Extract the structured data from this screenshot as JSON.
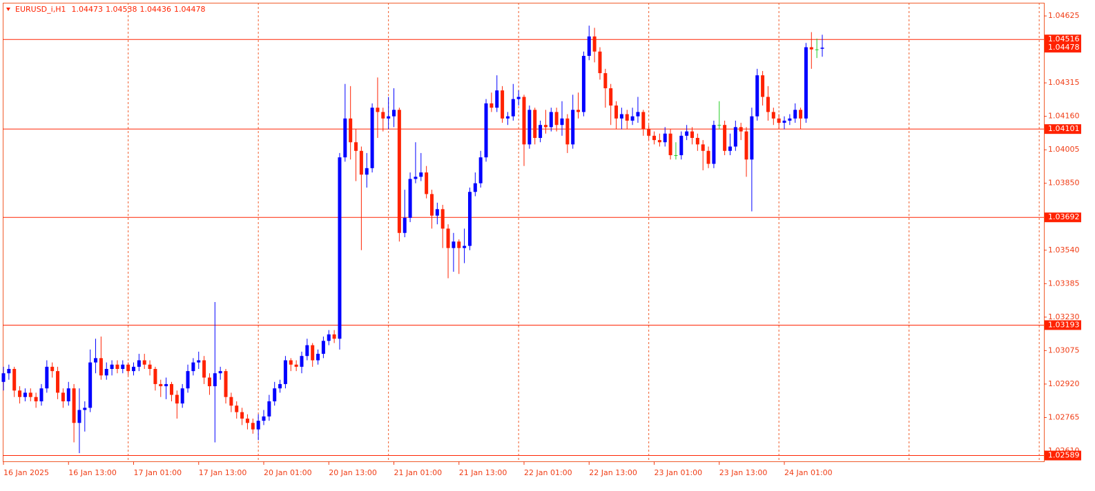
{
  "chart_data": {
    "type": "candlestick",
    "title": "EURUSD_i,H1",
    "up_color": "#0000ff",
    "down_color": "#ff2200",
    "doji_color": "#22cc22",
    "line_color": "#ff2200",
    "text_color": "#f03c14",
    "period_separators": true,
    "ylim": [
      1.02562,
      1.04686
    ],
    "yticks": [
      1.04625,
      1.04315,
      {
        "value": 1.0416,
        "label": "1.04160"
      },
      1.04005,
      {
        "value": 1.0385,
        "label": "1.03850"
      },
      {
        "value": 1.0354,
        "label": "1.03540"
      },
      1.03385,
      {
        "value": 1.0323,
        "label": "1.03230"
      },
      1.03075,
      {
        "value": 1.0292,
        "label": "1.02920"
      },
      1.02765,
      {
        "value": 1.0261,
        "label": "1.02610"
      }
    ],
    "hlines": [
      1.04516,
      1.04101,
      1.03692,
      1.03193,
      1.02589
    ],
    "categories": [
      "16 Jan 2025",
      null,
      null,
      null,
      null,
      null,
      null,
      null,
      null,
      null,
      null,
      null,
      "16 Jan 13:00",
      null,
      null,
      null,
      null,
      null,
      null,
      null,
      null,
      null,
      null,
      null,
      "17 Jan 01:00",
      null,
      null,
      null,
      null,
      null,
      null,
      null,
      null,
      null,
      null,
      null,
      "17 Jan 13:00",
      null,
      null,
      null,
      null,
      null,
      null,
      null,
      null,
      null,
      null,
      null,
      "20 Jan 01:00",
      null,
      null,
      null,
      null,
      null,
      null,
      null,
      null,
      null,
      null,
      null,
      "20 Jan 13:00",
      null,
      null,
      null,
      null,
      null,
      null,
      null,
      null,
      null,
      null,
      null,
      "21 Jan 01:00",
      null,
      null,
      null,
      null,
      null,
      null,
      null,
      null,
      null,
      null,
      null,
      "21 Jan 13:00",
      null,
      null,
      null,
      null,
      null,
      null,
      null,
      null,
      null,
      null,
      null,
      "22 Jan 01:00",
      null,
      null,
      null,
      null,
      null,
      null,
      null,
      null,
      null,
      null,
      null,
      "22 Jan 13:00",
      null,
      null,
      null,
      null,
      null,
      null,
      null,
      null,
      null,
      null,
      null,
      "23 Jan 01:00",
      null,
      null,
      null,
      null,
      null,
      null,
      null,
      null,
      null,
      null,
      null,
      "23 Jan 13:00",
      null,
      null,
      null,
      null,
      null,
      null,
      null,
      null,
      null,
      null,
      null,
      "24 Jan 01:00",
      null,
      null,
      null,
      null,
      null,
      null,
      null
    ],
    "ohlc": [
      [
        1.0293,
        1.03,
        1.0289,
        1.0297
      ],
      [
        1.0297,
        1.0301,
        1.0294,
        1.0299
      ],
      [
        1.0299,
        1.03,
        1.0286,
        1.0289
      ],
      [
        1.0289,
        1.0291,
        1.0283,
        1.0286
      ],
      [
        1.0286,
        1.029,
        1.0284,
        1.0288
      ],
      [
        1.0288,
        1.029,
        1.0284,
        1.0286
      ],
      [
        1.0286,
        1.0288,
        1.0281,
        1.0284
      ],
      [
        1.0284,
        1.0292,
        1.0282,
        1.029
      ],
      [
        1.029,
        1.0303,
        1.0288,
        1.03
      ],
      [
        1.03,
        1.0302,
        1.0295,
        1.0298
      ],
      [
        1.0298,
        1.03,
        1.0285,
        1.0288
      ],
      [
        1.0288,
        1.029,
        1.0281,
        1.0284
      ],
      [
        1.0284,
        1.0293,
        1.0282,
        1.029
      ],
      [
        1.029,
        1.0292,
        1.0265,
        1.0274
      ],
      [
        1.0274,
        1.029,
        1.026,
        1.028
      ],
      [
        1.028,
        1.0284,
        1.027,
        1.0281
      ],
      [
        1.0281,
        1.0308,
        1.0279,
        1.0302
      ],
      [
        1.0302,
        1.0313,
        1.0297,
        1.0304
      ],
      [
        1.0304,
        1.0314,
        1.0294,
        1.0296
      ],
      [
        1.0296,
        1.0302,
        1.0294,
        1.0299
      ],
      [
        1.0299,
        1.0303,
        1.0296,
        1.0301
      ],
      [
        1.0301,
        1.0303,
        1.0297,
        1.0299
      ],
      [
        1.0299,
        1.0303,
        1.0297,
        1.0301
      ],
      [
        1.0301,
        1.0302,
        1.0296,
        1.0298
      ],
      [
        1.0298,
        1.0302,
        1.0296,
        1.03
      ],
      [
        1.03,
        1.0306,
        1.0298,
        1.0303
      ],
      [
        1.0303,
        1.0306,
        1.0299,
        1.0301
      ],
      [
        1.0301,
        1.0303,
        1.0296,
        1.0299
      ],
      [
        1.0299,
        1.03,
        1.0289,
        1.0292
      ],
      [
        1.0292,
        1.0294,
        1.0286,
        1.0291
      ],
      [
        1.0291,
        1.0295,
        1.0285,
        1.0292
      ],
      [
        1.0292,
        1.0293,
        1.0284,
        1.0287
      ],
      [
        1.0287,
        1.0289,
        1.0276,
        1.0283
      ],
      [
        1.0283,
        1.0292,
        1.0281,
        1.029
      ],
      [
        1.029,
        1.0301,
        1.0288,
        1.0298
      ],
      [
        1.0298,
        1.0304,
        1.0296,
        1.0302
      ],
      [
        1.0302,
        1.0307,
        1.0299,
        1.0303
      ],
      [
        1.0303,
        1.0305,
        1.0292,
        1.0295
      ],
      [
        1.0295,
        1.0297,
        1.0287,
        1.0291
      ],
      [
        1.0291,
        1.033,
        1.0265,
        1.0297
      ],
      [
        1.0297,
        1.03,
        1.0294,
        1.0298
      ],
      [
        1.0298,
        1.0299,
        1.0283,
        1.0286
      ],
      [
        1.0286,
        1.0288,
        1.0279,
        1.0282
      ],
      [
        1.0282,
        1.0284,
        1.0276,
        1.0279
      ],
      [
        1.0279,
        1.0281,
        1.0273,
        1.0276
      ],
      [
        1.0276,
        1.0278,
        1.0271,
        1.0274
      ],
      [
        1.0274,
        1.0276,
        1.0269,
        1.0271
      ],
      [
        1.0271,
        1.0278,
        1.0266,
        1.0275
      ],
      [
        1.0275,
        1.028,
        1.0273,
        1.0277
      ],
      [
        1.0277,
        1.0287,
        1.0275,
        1.0284
      ],
      [
        1.0284,
        1.0293,
        1.0282,
        1.029
      ],
      [
        1.029,
        1.0294,
        1.0288,
        1.0292
      ],
      [
        1.0292,
        1.0305,
        1.029,
        1.0303
      ],
      [
        1.0303,
        1.0304,
        1.0298,
        1.0301
      ],
      [
        1.0301,
        1.0303,
        1.0298,
        1.03
      ],
      [
        1.03,
        1.0307,
        1.0297,
        1.0305
      ],
      [
        1.0305,
        1.0313,
        1.0303,
        1.031
      ],
      [
        1.031,
        1.0311,
        1.03,
        1.0303
      ],
      [
        1.0303,
        1.0308,
        1.0301,
        1.0306
      ],
      [
        1.0306,
        1.0314,
        1.0304,
        1.0312
      ],
      [
        1.0312,
        1.0317,
        1.031,
        1.0315
      ],
      [
        1.0315,
        1.0317,
        1.0311,
        1.0313
      ],
      [
        1.0313,
        1.0399,
        1.0308,
        1.0397
      ],
      [
        1.0397,
        1.0431,
        1.0395,
        1.0415
      ],
      [
        1.0415,
        1.043,
        1.0396,
        1.0404
      ],
      [
        1.0404,
        1.041,
        1.0386,
        1.04
      ],
      [
        1.04,
        1.0402,
        1.0354,
        1.0389
      ],
      [
        1.0389,
        1.0399,
        1.0383,
        1.0392
      ],
      [
        1.0392,
        1.0422,
        1.039,
        1.042
      ],
      [
        1.042,
        1.0434,
        1.0406,
        1.0418
      ],
      [
        1.0418,
        1.042,
        1.0409,
        1.0415
      ],
      [
        1.0415,
        1.0425,
        1.041,
        1.0416
      ],
      [
        1.0416,
        1.0429,
        1.0411,
        1.0419
      ],
      [
        1.0419,
        1.042,
        1.0358,
        1.0362
      ],
      [
        1.0362,
        1.0382,
        1.036,
        1.0369
      ],
      [
        1.0369,
        1.039,
        1.0367,
        1.0387
      ],
      [
        1.0387,
        1.0404,
        1.0385,
        1.0388
      ],
      [
        1.0388,
        1.0399,
        1.0386,
        1.039
      ],
      [
        1.039,
        1.0393,
        1.0378,
        1.038
      ],
      [
        1.038,
        1.0382,
        1.0364,
        1.037
      ],
      [
        1.037,
        1.0376,
        1.0366,
        1.0373
      ],
      [
        1.0373,
        1.0375,
        1.0355,
        1.0364
      ],
      [
        1.0364,
        1.0366,
        1.0341,
        1.0355
      ],
      [
        1.0355,
        1.0362,
        1.0344,
        1.0358
      ],
      [
        1.0358,
        1.0359,
        1.0343,
        1.0355
      ],
      [
        1.0355,
        1.0364,
        1.0348,
        1.0356
      ],
      [
        1.0356,
        1.0383,
        1.0354,
        1.0381
      ],
      [
        1.0381,
        1.039,
        1.0379,
        1.0385
      ],
      [
        1.0385,
        1.04,
        1.0383,
        1.0397
      ],
      [
        1.0397,
        1.0424,
        1.0395,
        1.0422
      ],
      [
        1.0422,
        1.0427,
        1.0418,
        1.042
      ],
      [
        1.042,
        1.0435,
        1.0418,
        1.0428
      ],
      [
        1.0428,
        1.043,
        1.0413,
        1.0415
      ],
      [
        1.0415,
        1.0418,
        1.0412,
        1.0416
      ],
      [
        1.0416,
        1.0431,
        1.0414,
        1.0424
      ],
      [
        1.0424,
        1.0428,
        1.0421,
        1.0425
      ],
      [
        1.0425,
        1.0426,
        1.0393,
        1.0403
      ],
      [
        1.0403,
        1.0421,
        1.0401,
        1.0419
      ],
      [
        1.0419,
        1.042,
        1.0403,
        1.0406
      ],
      [
        1.0406,
        1.0414,
        1.0404,
        1.0412
      ],
      [
        1.0412,
        1.0419,
        1.0408,
        1.0411
      ],
      [
        1.0411,
        1.042,
        1.0409,
        1.0418
      ],
      [
        1.0418,
        1.042,
        1.0409,
        1.0412
      ],
      [
        1.0412,
        1.0423,
        1.0407,
        1.0415
      ],
      [
        1.0415,
        1.0417,
        1.0399,
        1.0403
      ],
      [
        1.0403,
        1.0426,
        1.0401,
        1.0419
      ],
      [
        1.0419,
        1.0427,
        1.0415,
        1.0418
      ],
      [
        1.0418,
        1.0446,
        1.0416,
        1.0444
      ],
      [
        1.0444,
        1.0458,
        1.0442,
        1.0453
      ],
      [
        1.0453,
        1.0457,
        1.0441,
        1.0446
      ],
      [
        1.0446,
        1.0448,
        1.0433,
        1.0436
      ],
      [
        1.0436,
        1.0438,
        1.042,
        1.0429
      ],
      [
        1.0429,
        1.0431,
        1.0412,
        1.0421
      ],
      [
        1.0421,
        1.0423,
        1.041,
        1.0415
      ],
      [
        1.0415,
        1.042,
        1.041,
        1.0417
      ],
      [
        1.0417,
        1.0419,
        1.041,
        1.0414
      ],
      [
        1.0414,
        1.042,
        1.0412,
        1.0416
      ],
      [
        1.0416,
        1.0425,
        1.0413,
        1.0418
      ],
      [
        1.0418,
        1.0419,
        1.0407,
        1.041
      ],
      [
        1.041,
        1.0412,
        1.0405,
        1.0407
      ],
      [
        1.0407,
        1.0409,
        1.0403,
        1.0405
      ],
      [
        1.0405,
        1.0408,
        1.0402,
        1.0404
      ],
      [
        1.0404,
        1.0411,
        1.0402,
        1.0408
      ],
      [
        1.0408,
        1.041,
        1.0396,
        1.0398
      ],
      [
        1.0398,
        1.0404,
        1.0396,
        1.0398
      ],
      [
        1.0398,
        1.0409,
        1.0396,
        1.0407
      ],
      [
        1.0407,
        1.0412,
        1.0405,
        1.0409
      ],
      [
        1.0409,
        1.0411,
        1.0403,
        1.0406
      ],
      [
        1.0406,
        1.0408,
        1.04,
        1.0403
      ],
      [
        1.0403,
        1.0405,
        1.0391,
        1.04
      ],
      [
        1.04,
        1.0402,
        1.0392,
        1.0394
      ],
      [
        1.0394,
        1.0414,
        1.0392,
        1.0412
      ],
      [
        1.0412,
        1.0423,
        1.041,
        1.0412
      ],
      [
        1.0412,
        1.0414,
        1.0398,
        1.04
      ],
      [
        1.04,
        1.0408,
        1.0398,
        1.0402
      ],
      [
        1.0402,
        1.0414,
        1.04,
        1.0411
      ],
      [
        1.0411,
        1.0413,
        1.0405,
        1.0409
      ],
      [
        1.0409,
        1.0411,
        1.0388,
        1.0396
      ],
      [
        1.0396,
        1.042,
        1.0372,
        1.0416
      ],
      [
        1.0416,
        1.0438,
        1.0414,
        1.0435
      ],
      [
        1.0435,
        1.0437,
        1.0421,
        1.0425
      ],
      [
        1.0425,
        1.043,
        1.0414,
        1.0418
      ],
      [
        1.0418,
        1.042,
        1.0412,
        1.0415
      ],
      [
        1.0415,
        1.0417,
        1.041,
        1.0413
      ],
      [
        1.0413,
        1.0416,
        1.041,
        1.0414
      ],
      [
        1.0414,
        1.0417,
        1.0412,
        1.0415
      ],
      [
        1.0415,
        1.0422,
        1.0413,
        1.0419
      ],
      [
        1.0419,
        1.042,
        1.041,
        1.0415
      ],
      [
        1.0415,
        1.045,
        1.0413,
        1.0448
      ],
      [
        1.0448,
        1.0455,
        1.0438,
        1.0447
      ],
      [
        1.0447,
        1.0452,
        1.0443,
        1.0447
      ],
      [
        1.04473,
        1.04538,
        1.04436,
        1.04478
      ]
    ]
  }
}
